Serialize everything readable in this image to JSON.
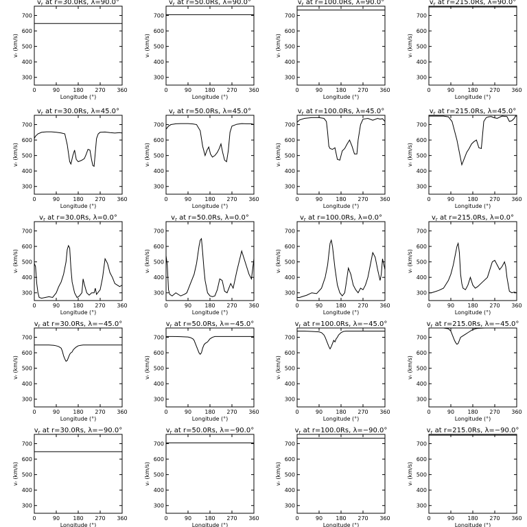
{
  "figure": {
    "rows": [
      {
        "lambda_label": "90.0°"
      },
      {
        "lambda_label": "45.0°"
      },
      {
        "lambda_label": "0.0°"
      },
      {
        "lambda_label": "−45.0°"
      },
      {
        "lambda_label": "−90.0°"
      }
    ],
    "columns": [
      {
        "radius_label": "30.0Rs"
      },
      {
        "radius_label": "50.0Rs"
      },
      {
        "radius_label": "100.0Rs"
      },
      {
        "radius_label": "215.0Rs"
      }
    ],
    "title_prefix": "v",
    "title_subscript": "r",
    "title_mid": " at r=",
    "title_lambda": ", λ="
  },
  "chart_data": {
    "type": "line",
    "layout": "grid 5x4",
    "xlabel": "Longitude (°)",
    "ylabel": "vᵣ (km/s)",
    "xlim": [
      0,
      360
    ],
    "ylim": [
      250,
      760
    ],
    "xticks": [
      0,
      90,
      180,
      270,
      360
    ],
    "yticks": [
      300,
      400,
      500,
      600,
      700
    ],
    "grid": false,
    "panels": [
      {
        "row": 0,
        "col": 0,
        "x": [
          0,
          360
        ],
        "y": [
          648,
          648
        ]
      },
      {
        "row": 0,
        "col": 1,
        "x": [
          0,
          360
        ],
        "y": [
          705,
          705
        ]
      },
      {
        "row": 0,
        "col": 2,
        "x": [
          0,
          360
        ],
        "y": [
          735,
          735
        ]
      },
      {
        "row": 0,
        "col": 3,
        "x": [
          0,
          360
        ],
        "y": [
          755,
          755
        ]
      },
      {
        "row": 1,
        "col": 0,
        "x": [
          0,
          5,
          15,
          30,
          50,
          70,
          90,
          110,
          125,
          135,
          145,
          150,
          158,
          165,
          172,
          180,
          188,
          195,
          205,
          212,
          220,
          228,
          235,
          240,
          245,
          250,
          255,
          262,
          270,
          290,
          310,
          330,
          350,
          360
        ],
        "y": [
          610,
          625,
          640,
          650,
          653,
          653,
          650,
          646,
          640,
          570,
          460,
          445,
          500,
          535,
          475,
          460,
          465,
          470,
          480,
          505,
          540,
          535,
          470,
          435,
          430,
          520,
          610,
          640,
          650,
          652,
          648,
          645,
          648,
          645
        ]
      },
      {
        "row": 1,
        "col": 1,
        "x": [
          0,
          10,
          20,
          40,
          60,
          90,
          110,
          125,
          140,
          150,
          160,
          168,
          175,
          182,
          190,
          200,
          210,
          218,
          225,
          232,
          240,
          248,
          255,
          262,
          270,
          290,
          310,
          330,
          350,
          360
        ],
        "y": [
          670,
          690,
          700,
          705,
          706,
          706,
          704,
          700,
          660,
          560,
          500,
          535,
          555,
          510,
          490,
          500,
          520,
          545,
          575,
          520,
          470,
          460,
          530,
          650,
          690,
          702,
          706,
          705,
          705,
          700
        ]
      },
      {
        "row": 1,
        "col": 2,
        "x": [
          0,
          10,
          30,
          60,
          90,
          110,
          120,
          125,
          130,
          135,
          145,
          155,
          165,
          175,
          185,
          195,
          205,
          215,
          225,
          235,
          245,
          250,
          260,
          270,
          290,
          310,
          330,
          340,
          350,
          360
        ],
        "y": [
          715,
          730,
          740,
          745,
          745,
          740,
          720,
          650,
          560,
          545,
          540,
          550,
          475,
          470,
          530,
          545,
          575,
          600,
          560,
          510,
          510,
          600,
          700,
          735,
          740,
          728,
          740,
          735,
          738,
          720
        ]
      },
      {
        "row": 1,
        "col": 3,
        "x": [
          0,
          30,
          60,
          80,
          95,
          105,
          115,
          125,
          135,
          145,
          155,
          165,
          175,
          185,
          195,
          205,
          215,
          225,
          235,
          245,
          255,
          265,
          280,
          300,
          320,
          330,
          340,
          350,
          355,
          360
        ],
        "y": [
          755,
          755,
          755,
          750,
          720,
          660,
          600,
          520,
          440,
          480,
          520,
          545,
          575,
          590,
          600,
          550,
          545,
          720,
          745,
          750,
          752,
          745,
          740,
          755,
          752,
          720,
          725,
          740,
          755,
          755
        ]
      },
      {
        "row": 2,
        "col": 0,
        "x": [
          0,
          5,
          10,
          15,
          20,
          30,
          45,
          60,
          75,
          90,
          100,
          110,
          120,
          130,
          135,
          140,
          145,
          150,
          155,
          165,
          175,
          185,
          195,
          200,
          205,
          215,
          225,
          235,
          245,
          250,
          255,
          270,
          280,
          290,
          300,
          310,
          320,
          330,
          340,
          350,
          360
        ],
        "y": [
          490,
          470,
          360,
          300,
          270,
          265,
          270,
          275,
          270,
          300,
          340,
          370,
          420,
          500,
          580,
          605,
          590,
          460,
          370,
          300,
          270,
          280,
          300,
          390,
          355,
          300,
          285,
          300,
          300,
          330,
          290,
          320,
          400,
          520,
          490,
          430,
          400,
          360,
          350,
          340,
          350
        ]
      },
      {
        "row": 2,
        "col": 1,
        "x": [
          0,
          5,
          10,
          15,
          25,
          40,
          60,
          75,
          85,
          95,
          105,
          115,
          125,
          135,
          140,
          145,
          150,
          155,
          160,
          170,
          180,
          190,
          200,
          210,
          220,
          230,
          240,
          250,
          260,
          265,
          275,
          290,
          310,
          320,
          330,
          340,
          350,
          360
        ],
        "y": [
          540,
          480,
          320,
          290,
          280,
          300,
          280,
          290,
          300,
          340,
          380,
          420,
          490,
          600,
          640,
          650,
          560,
          460,
          380,
          300,
          280,
          275,
          280,
          320,
          390,
          380,
          310,
          300,
          340,
          360,
          330,
          440,
          570,
          520,
          470,
          420,
          390,
          520
        ]
      },
      {
        "row": 2,
        "col": 2,
        "x": [
          0,
          10,
          20,
          30,
          40,
          60,
          80,
          100,
          115,
          125,
          130,
          135,
          140,
          145,
          155,
          165,
          175,
          185,
          195,
          200,
          210,
          220,
          230,
          240,
          250,
          260,
          270,
          280,
          290,
          300,
          310,
          320,
          330,
          340,
          345,
          350,
          360
        ],
        "y": [
          270,
          270,
          275,
          280,
          285,
          300,
          295,
          330,
          400,
          480,
          550,
          620,
          640,
          600,
          460,
          350,
          300,
          280,
          300,
          350,
          460,
          420,
          350,
          320,
          300,
          330,
          320,
          350,
          400,
          480,
          560,
          530,
          450,
          380,
          420,
          520,
          450
        ]
      },
      {
        "row": 2,
        "col": 3,
        "x": [
          0,
          10,
          20,
          40,
          60,
          80,
          90,
          100,
          110,
          115,
          120,
          125,
          130,
          135,
          140,
          150,
          160,
          170,
          180,
          190,
          200,
          220,
          240,
          260,
          270,
          280,
          290,
          300,
          310,
          315,
          320,
          330,
          340,
          350,
          360
        ],
        "y": [
          300,
          300,
          305,
          315,
          330,
          380,
          420,
          480,
          560,
          600,
          620,
          560,
          420,
          360,
          330,
          320,
          350,
          400,
          350,
          330,
          340,
          370,
          400,
          500,
          510,
          480,
          450,
          470,
          500,
          470,
          400,
          310,
          300,
          305,
          300
        ]
      },
      {
        "row": 3,
        "col": 0,
        "x": [
          0,
          30,
          60,
          80,
          90,
          100,
          110,
          115,
          120,
          125,
          130,
          135,
          140,
          145,
          150,
          155,
          160,
          170,
          180,
          190,
          200,
          220,
          250,
          300,
          360
        ],
        "y": [
          650,
          650,
          650,
          648,
          645,
          640,
          630,
          610,
          580,
          560,
          545,
          550,
          570,
          590,
          600,
          605,
          620,
          635,
          645,
          648,
          650,
          650,
          650,
          650,
          650
        ]
      },
      {
        "row": 3,
        "col": 1,
        "x": [
          0,
          30,
          60,
          90,
          100,
          110,
          115,
          120,
          125,
          130,
          135,
          140,
          145,
          150,
          155,
          160,
          170,
          180,
          190,
          200,
          220,
          250,
          300,
          360
        ],
        "y": [
          705,
          705,
          704,
          702,
          698,
          690,
          680,
          660,
          640,
          620,
          600,
          590,
          600,
          630,
          650,
          660,
          670,
          690,
          700,
          705,
          705,
          705,
          705,
          705
        ]
      },
      {
        "row": 3,
        "col": 2,
        "x": [
          0,
          30,
          60,
          90,
          100,
          110,
          115,
          120,
          125,
          130,
          135,
          140,
          145,
          150,
          155,
          160,
          165,
          170,
          180,
          190,
          200,
          220,
          250,
          300,
          360
        ],
        "y": [
          740,
          740,
          738,
          735,
          730,
          715,
          700,
          680,
          660,
          640,
          625,
          640,
          660,
          680,
          670,
          690,
          700,
          715,
          730,
          738,
          740,
          740,
          740,
          740,
          740
        ]
      },
      {
        "row": 3,
        "col": 3,
        "x": [
          0,
          30,
          60,
          80,
          90,
          95,
          100,
          105,
          110,
          115,
          120,
          125,
          130,
          140,
          150,
          160,
          170,
          180,
          190,
          200,
          230,
          270,
          300,
          360
        ],
        "y": [
          760,
          760,
          760,
          755,
          740,
          720,
          700,
          680,
          665,
          655,
          660,
          680,
          700,
          710,
          720,
          730,
          740,
          750,
          755,
          758,
          760,
          760,
          760,
          760
        ]
      },
      {
        "row": 4,
        "col": 0,
        "x": [
          0,
          360
        ],
        "y": [
          648,
          648
        ]
      },
      {
        "row": 4,
        "col": 1,
        "x": [
          0,
          360
        ],
        "y": [
          705,
          705
        ]
      },
      {
        "row": 4,
        "col": 2,
        "x": [
          0,
          360
        ],
        "y": [
          735,
          735
        ]
      },
      {
        "row": 4,
        "col": 3,
        "x": [
          0,
          360
        ],
        "y": [
          755,
          755
        ]
      }
    ]
  }
}
